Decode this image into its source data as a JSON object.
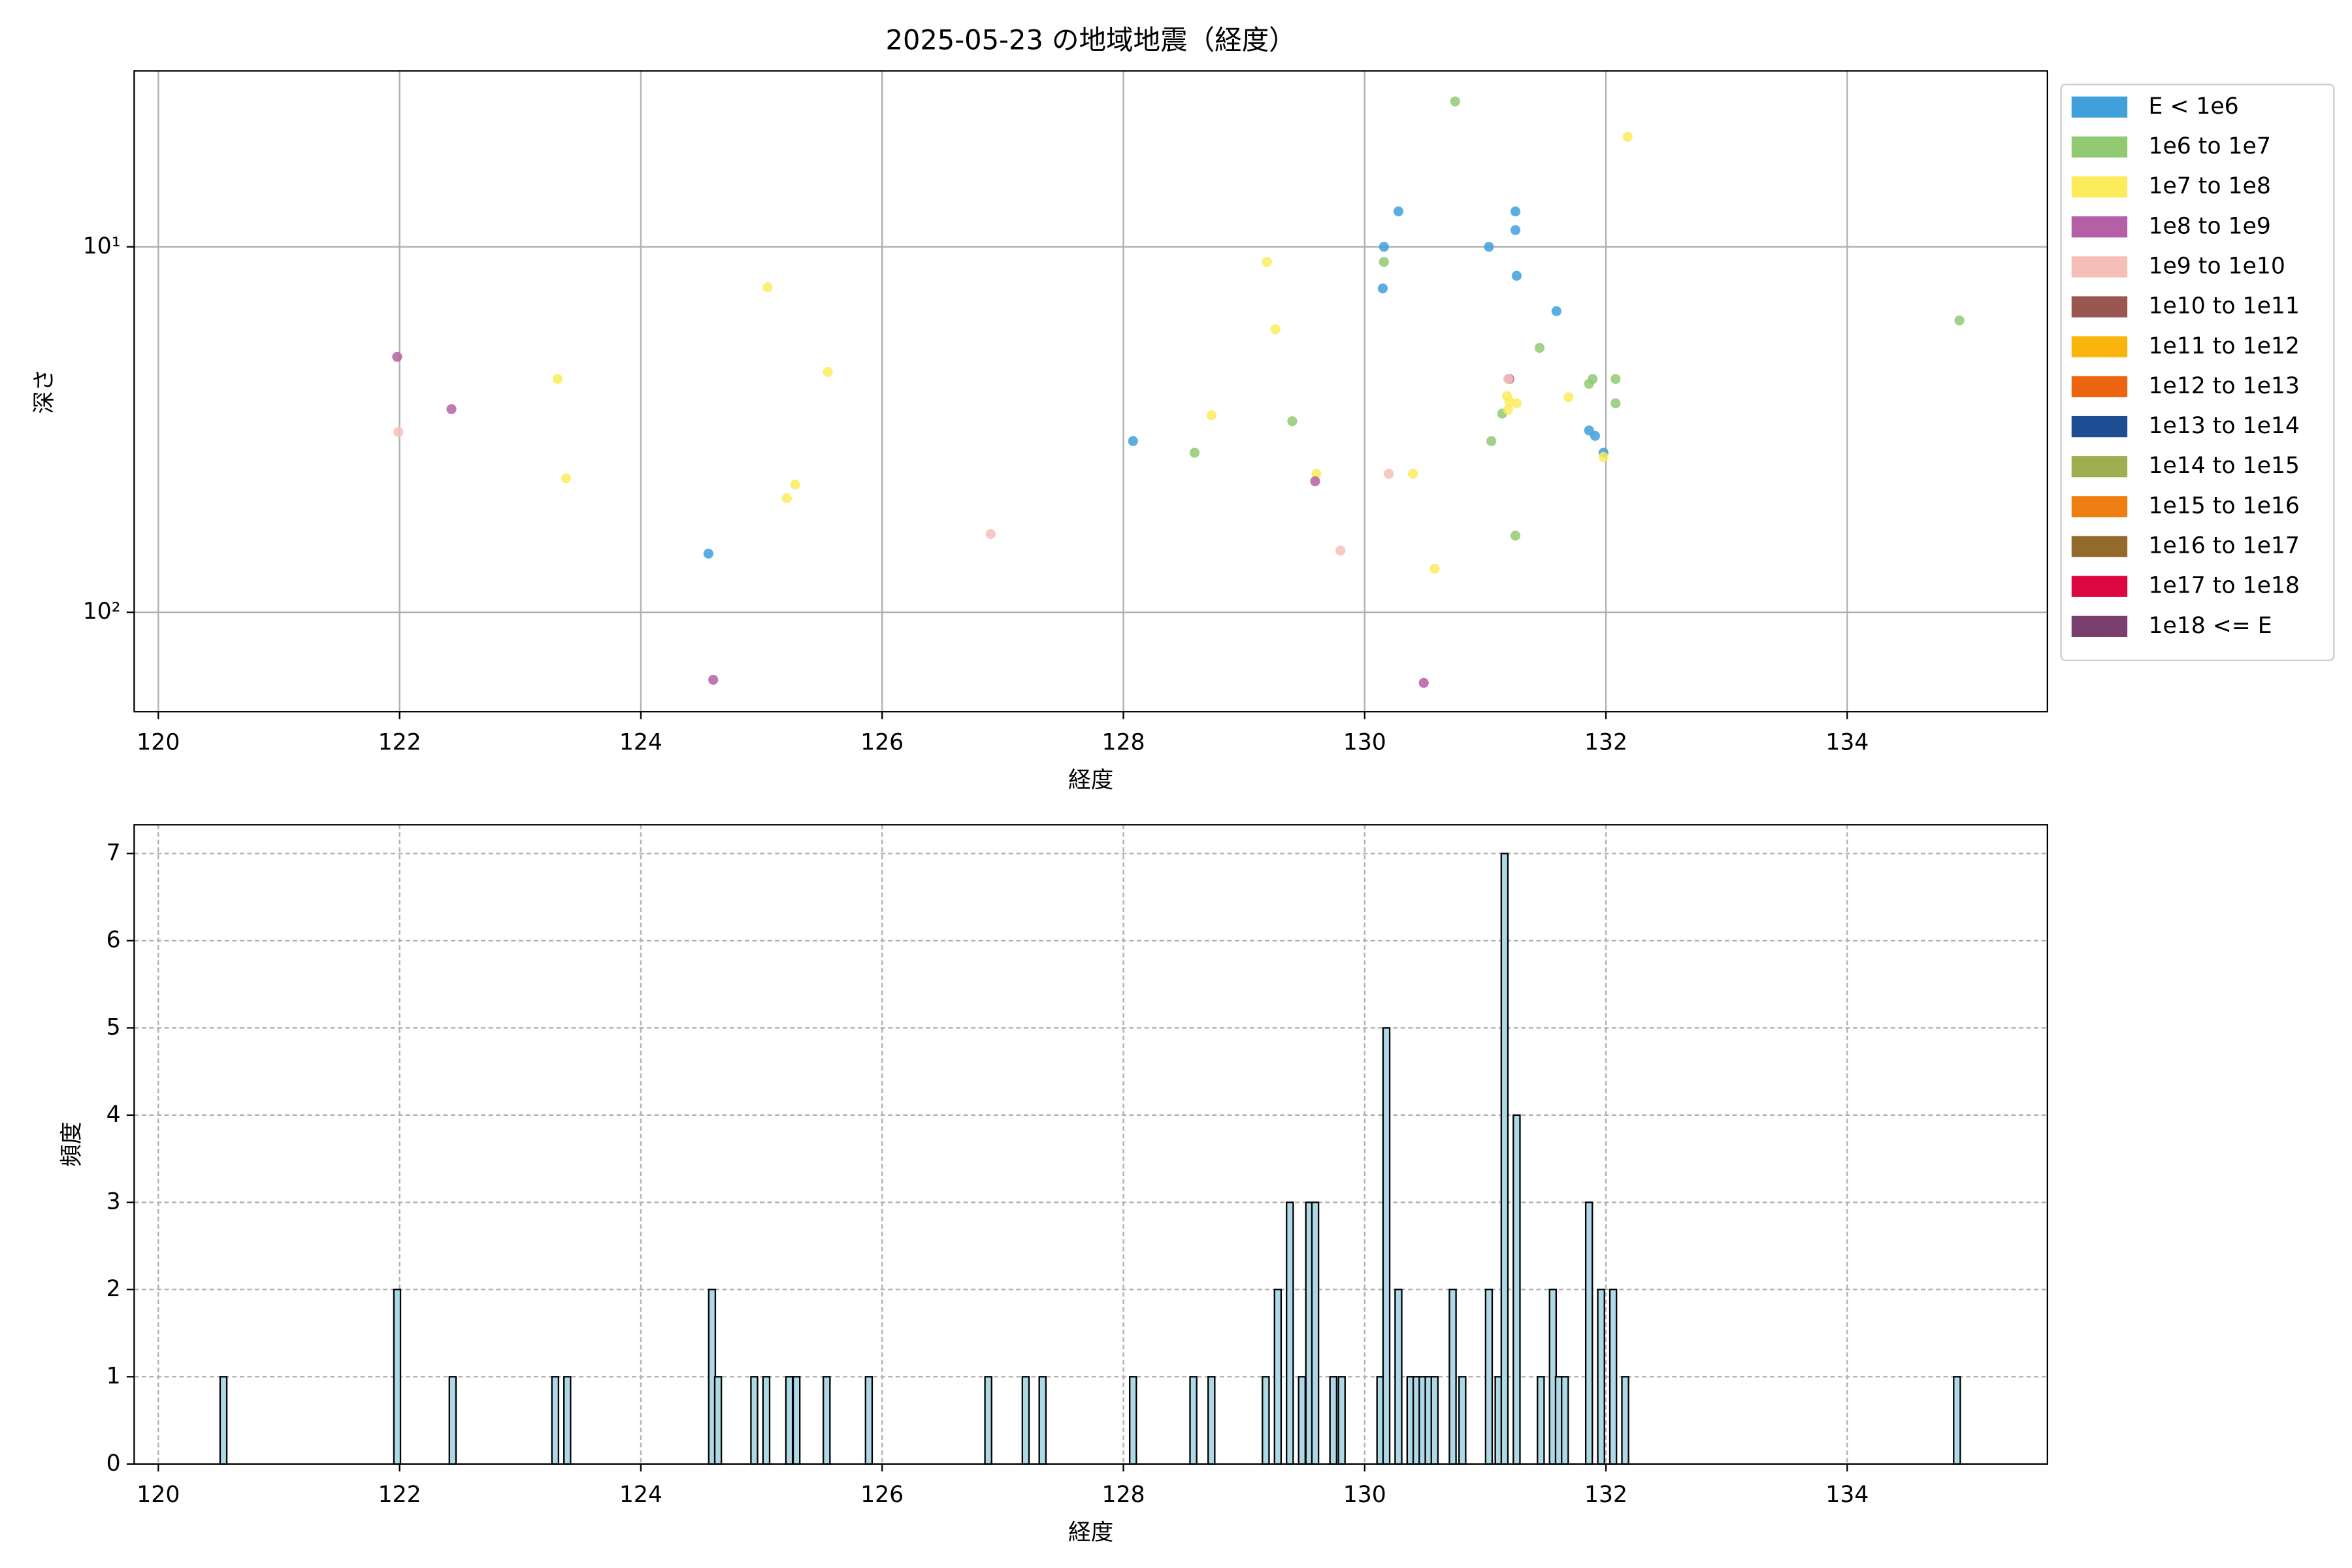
{
  "chart_data": [
    {
      "type": "scatter",
      "title": "2025-05-23 の地域地震（経度）",
      "x_label": "経度",
      "y_label": "深さ",
      "xlim": [
        119.8,
        135.66
      ],
      "xticks": [
        120,
        122,
        124,
        126,
        128,
        130,
        132,
        134
      ],
      "yscale": "log",
      "ylim": [
        187,
        3.3
      ],
      "yticks": [
        {
          "value": 10,
          "label": "10¹"
        },
        {
          "value": 100,
          "label": "10²"
        }
      ],
      "grid": true,
      "grid_style": "solid",
      "legend": "outside right",
      "series": [
        {
          "name": "E < 1e6",
          "color": "#3fa0dc",
          "x": [
            124.56,
            128.08,
            130.16,
            130.15,
            130.28,
            131.03,
            131.25,
            131.25,
            131.26,
            131.59,
            131.86,
            131.91,
            131.98
          ],
          "y": [
            69.1,
            34.0,
            10.0,
            13.0,
            8.0,
            10.0,
            8.0,
            9.0,
            12.0,
            15.0,
            31.8,
            32.9,
            36.6
          ]
        },
        {
          "name": "1e6 to 1e7",
          "color": "#92c973",
          "x": [
            128.59,
            129.4,
            130.16,
            130.75,
            131.05,
            131.14,
            131.25,
            131.45,
            131.86,
            131.89,
            132.08,
            132.08,
            134.93
          ],
          "y": [
            36.6,
            30.0,
            11.0,
            4.0,
            34.0,
            28.6,
            61.7,
            18.9,
            23.7,
            23.0,
            23.0,
            26.8,
            15.9
          ]
        },
        {
          "name": "1e7 to 1e8",
          "color": "#fcec5c",
          "x": [
            123.31,
            123.38,
            125.05,
            125.21,
            125.28,
            125.55,
            128.73,
            129.19,
            129.26,
            129.6,
            130.4,
            130.58,
            131.18,
            131.2,
            131.26,
            131.19,
            131.69,
            131.98,
            132.18
          ],
          "y": [
            23.0,
            43.0,
            12.9,
            48.7,
            44.7,
            22.0,
            28.9,
            11.0,
            16.8,
            41.8,
            41.8,
            76.0,
            25.6,
            26.5,
            26.8,
            27.9,
            25.8,
            37.6,
            5.0
          ]
        },
        {
          "name": "1e8 to 1e9",
          "color": "#b560a6",
          "x": [
            121.98,
            122.43,
            124.6,
            129.59,
            130.49,
            131.2
          ],
          "y": [
            20.0,
            27.8,
            153,
            43.8,
            156,
            23.0
          ]
        },
        {
          "name": "1e9 to 1e10",
          "color": "#f5bfb8",
          "x": [
            121.99,
            126.9,
            129.8,
            130.2,
            131.19
          ],
          "y": [
            32.1,
            61.1,
            67.8,
            41.8,
            23.0
          ]
        },
        {
          "name": "1e10 to 1e11",
          "color": "#9a5651",
          "x": [],
          "y": []
        },
        {
          "name": "1e11 to 1e12",
          "color": "#f9b50b",
          "x": [],
          "y": []
        },
        {
          "name": "1e12 to 1e13",
          "color": "#ec6410",
          "x": [],
          "y": []
        },
        {
          "name": "1e13 to 1e14",
          "color": "#1d4d92",
          "x": [],
          "y": []
        },
        {
          "name": "1e14 to 1e15",
          "color": "#9fae4f",
          "x": [],
          "y": []
        },
        {
          "name": "1e15 to 1e16",
          "color": "#ee7e12",
          "x": [],
          "y": []
        },
        {
          "name": "1e16 to 1e17",
          "color": "#94692c",
          "x": [],
          "y": []
        },
        {
          "name": "1e17 to 1e18",
          "color": "#dc0740",
          "x": [],
          "y": []
        },
        {
          "name": "1e18 <= E",
          "color": "#7a3f6d",
          "x": [],
          "y": []
        }
      ]
    },
    {
      "type": "bar",
      "x_label": "経度",
      "y_label": "頻度",
      "color": "#add8e6",
      "edge_color": "#000000",
      "xlim": [
        119.8,
        135.66
      ],
      "xticks": [
        120,
        122,
        124,
        126,
        128,
        130,
        132,
        134
      ],
      "ylim": [
        0,
        7.33
      ],
      "yticks": [
        0,
        1,
        2,
        3,
        4,
        5,
        6,
        7
      ],
      "grid": true,
      "grid_style": "dashed",
      "x": [
        120.54,
        121.98,
        122.44,
        123.29,
        123.39,
        124.59,
        124.64,
        124.94,
        125.04,
        125.23,
        125.29,
        125.54,
        125.89,
        126.88,
        127.19,
        127.33,
        128.08,
        128.58,
        128.73,
        129.18,
        129.28,
        129.38,
        129.48,
        129.54,
        129.59,
        129.74,
        129.81,
        130.13,
        130.18,
        130.28,
        130.38,
        130.43,
        130.48,
        130.53,
        130.58,
        130.73,
        130.81,
        131.03,
        131.11,
        131.16,
        131.26,
        131.46,
        131.56,
        131.61,
        131.66,
        131.86,
        131.96,
        132.06,
        132.16,
        134.91
      ],
      "values": [
        1,
        2,
        1,
        1,
        1,
        2,
        1,
        1,
        1,
        1,
        1,
        1,
        1,
        1,
        1,
        1,
        1,
        1,
        1,
        1,
        2,
        3,
        1,
        3,
        3,
        1,
        1,
        1,
        5,
        2,
        1,
        1,
        1,
        1,
        1,
        2,
        1,
        2,
        1,
        7,
        4,
        1,
        2,
        1,
        1,
        3,
        2,
        2,
        1,
        1
      ]
    }
  ]
}
